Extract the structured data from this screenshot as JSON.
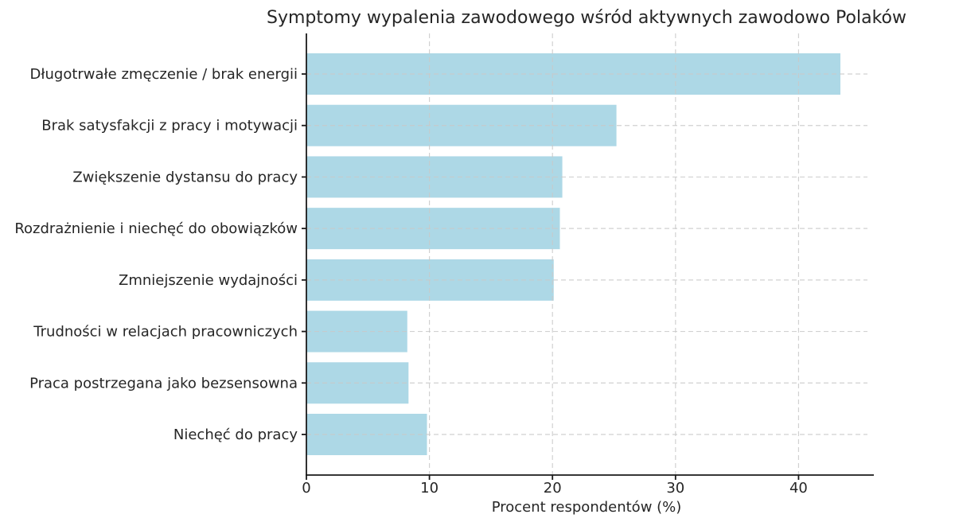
{
  "chart_data": {
    "type": "bar",
    "orientation": "horizontal",
    "title": "Symptomy wypalenia zawodowego wśród aktywnych zawodowo Polaków",
    "xlabel": "Procent respondentów (%)",
    "ylabel": "",
    "categories": [
      "Długotrwałe zmęczenie / brak energii",
      "Brak satysfakcji z pracy i motywacji",
      "Zwiększenie dystansu do pracy",
      "Rozdrażnienie i niechęć do obowiązków",
      "Zmniejszenie wydajności",
      "Trudności w relacjach pracowniczych",
      "Praca postrzegana jako bezsensowna",
      "Niechęć do pracy"
    ],
    "values": [
      43.4,
      25.2,
      20.8,
      20.6,
      20.1,
      8.2,
      8.3,
      9.8
    ],
    "x_ticks": [
      0,
      10,
      20,
      30,
      40
    ],
    "xlim": [
      0,
      45.6
    ],
    "grid": true,
    "legend": null,
    "colors": {
      "bar_fill": "#ADD8E6",
      "grid_line": "#c9c9c9",
      "axis_line": "#1a1a1a",
      "text": "#262626",
      "background": "#ffffff"
    }
  }
}
